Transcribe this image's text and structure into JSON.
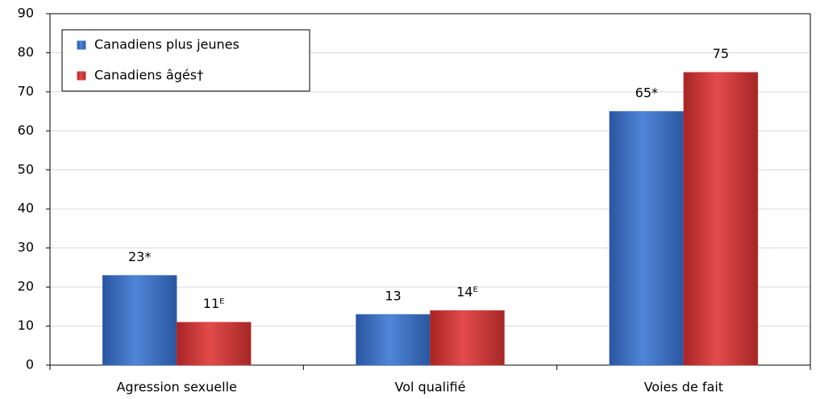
{
  "chart_data": {
    "type": "bar",
    "categories": [
      "Agression sexuelle",
      "Vol qualifié",
      "Voies de fait"
    ],
    "series": [
      {
        "name": "Canadiens plus jeunes",
        "color": "#3d72c8",
        "values": [
          23,
          13,
          65
        ],
        "value_labels": [
          "23*",
          "13",
          "65*"
        ]
      },
      {
        "name": "Canadiens âgés†",
        "color": "#d83c3c",
        "values": [
          11,
          14,
          75
        ],
        "value_labels": [
          "11ᴱ",
          "14ᴱ",
          "75"
        ]
      }
    ],
    "ylim": [
      0,
      90
    ],
    "yticks": [
      0,
      10,
      20,
      30,
      40,
      50,
      60,
      70,
      80,
      90
    ],
    "grid": true,
    "legend": "top-left"
  }
}
